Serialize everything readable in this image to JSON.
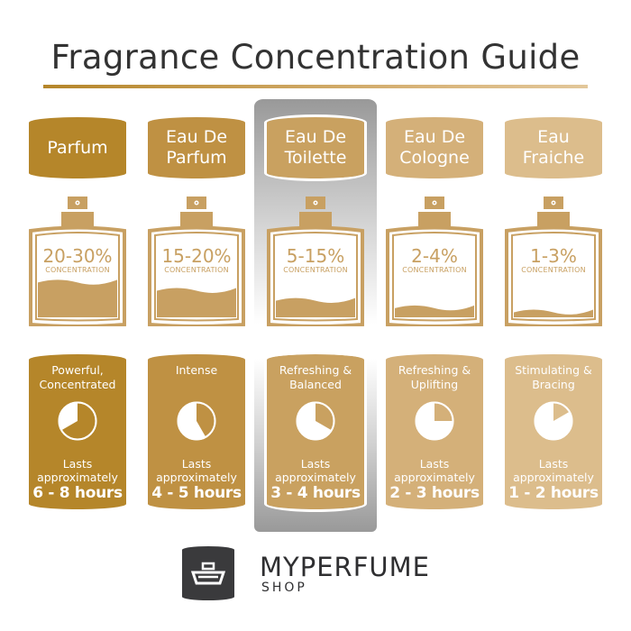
{
  "title": "Fragrance Concentration Guide",
  "concentration_label": "CONCENTRATION",
  "lasts_label": "Lasts approximately",
  "columns": [
    {
      "name": "Parfum",
      "concentration": "20-30%",
      "liquid_level": 0.42,
      "description": "Powerful, Concentrated",
      "duration_hours": 8,
      "duration": "6 - 8 hours",
      "color": "#b5862a",
      "highlighted": false
    },
    {
      "name": "Eau De Parfum",
      "concentration": "15-20%",
      "liquid_level": 0.32,
      "description": "Intense",
      "duration_hours": 5,
      "duration": "4 - 5 hours",
      "color": "#bf9143",
      "highlighted": false
    },
    {
      "name": "Eau De Toilette",
      "concentration": "5-15%",
      "liquid_level": 0.2,
      "description": "Refreshing & Balanced",
      "duration_hours": 4,
      "duration": "3 - 4 hours",
      "color": "#c9a160",
      "highlighted": true
    },
    {
      "name": "Eau De Cologne",
      "concentration": "2-4%",
      "liquid_level": 0.11,
      "description": "Refreshing & Uplifting",
      "duration_hours": 3,
      "duration": "2 - 3 hours",
      "color": "#d4b079",
      "highlighted": false
    },
    {
      "name": "Eau Fraiche",
      "concentration": "1-3%",
      "liquid_level": 0.06,
      "description": "Stimulating & Bracing",
      "duration_hours": 2,
      "duration": "1 - 2 hours",
      "color": "#dcbd8c",
      "highlighted": false
    }
  ],
  "bottle_color": "#c8a062",
  "brand": {
    "name": "MYPERFUME",
    "sub": "SHOP",
    "logo_color": "#3a3a3c"
  }
}
